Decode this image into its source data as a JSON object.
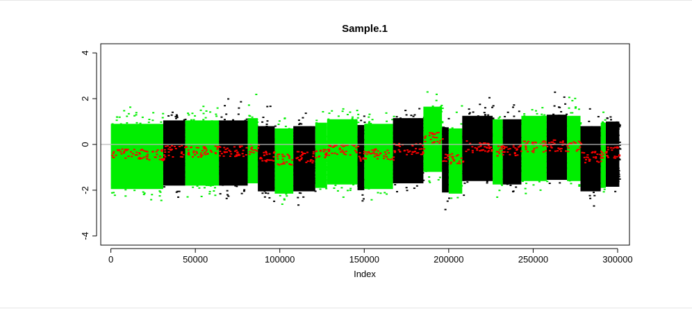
{
  "chart_data": {
    "type": "scatter",
    "title": "Sample.1",
    "xlabel": "Index",
    "ylabel": "",
    "xlim": [
      -6000,
      307000
    ],
    "ylim": [
      -4.4,
      4.4
    ],
    "x_ticks": [
      0,
      50000,
      100000,
      150000,
      200000,
      250000,
      300000
    ],
    "x_tick_labels": [
      "0",
      "50000",
      "100000",
      "150000",
      "200000",
      "250000",
      "300000"
    ],
    "y_ticks": [
      -4,
      -2,
      0,
      2,
      4
    ],
    "y_tick_labels": [
      "-4",
      "-2",
      "0",
      "2",
      "4"
    ],
    "reference_line": {
      "y": 0,
      "color": "#bbbbbb"
    },
    "colors": {
      "green": "#00ee00",
      "black": "#000000",
      "segment": "#ff0000"
    },
    "segments": [
      {
        "x0": 0,
        "x1": 31000,
        "color": "green",
        "mean": -0.45
      },
      {
        "x0": 31000,
        "x1": 44000,
        "color": "black",
        "mean": -0.3
      },
      {
        "x0": 44000,
        "x1": 64000,
        "color": "green",
        "mean": -0.3
      },
      {
        "x0": 64000,
        "x1": 81000,
        "color": "black",
        "mean": -0.3
      },
      {
        "x0": 81000,
        "x1": 87000,
        "color": "green",
        "mean": -0.2
      },
      {
        "x0": 87000,
        "x1": 97000,
        "color": "black",
        "mean": -0.55
      },
      {
        "x0": 97000,
        "x1": 108000,
        "color": "green",
        "mean": -0.65
      },
      {
        "x0": 108000,
        "x1": 121000,
        "color": "black",
        "mean": -0.55
      },
      {
        "x0": 121000,
        "x1": 128000,
        "color": "green",
        "mean": -0.4
      },
      {
        "x0": 128000,
        "x1": 146000,
        "color": "green",
        "mean": -0.25
      },
      {
        "x0": 146000,
        "x1": 150000,
        "color": "black",
        "mean": -0.5
      },
      {
        "x0": 150000,
        "x1": 167000,
        "color": "green",
        "mean": -0.45
      },
      {
        "x0": 167000,
        "x1": 185000,
        "color": "black",
        "mean": -0.2
      },
      {
        "x0": 185000,
        "x1": 196000,
        "color": "green",
        "mean": 0.3
      },
      {
        "x0": 196000,
        "x1": 200000,
        "color": "black",
        "mean": -0.6
      },
      {
        "x0": 200000,
        "x1": 208000,
        "color": "green",
        "mean": -0.65
      },
      {
        "x0": 208000,
        "x1": 226000,
        "color": "black",
        "mean": -0.1
      },
      {
        "x0": 226000,
        "x1": 232000,
        "color": "green",
        "mean": -0.25
      },
      {
        "x0": 232000,
        "x1": 243000,
        "color": "black",
        "mean": -0.25
      },
      {
        "x0": 243000,
        "x1": 258000,
        "color": "green",
        "mean": -0.1
      },
      {
        "x0": 258000,
        "x1": 270000,
        "color": "black",
        "mean": -0.05
      },
      {
        "x0": 270000,
        "x1": 278000,
        "color": "green",
        "mean": -0.1
      },
      {
        "x0": 278000,
        "x1": 290000,
        "color": "black",
        "mean": -0.55
      },
      {
        "x0": 290000,
        "x1": 293000,
        "color": "green",
        "mean": -0.4
      },
      {
        "x0": 293000,
        "x1": 301000,
        "color": "black",
        "mean": -0.35
      }
    ]
  }
}
